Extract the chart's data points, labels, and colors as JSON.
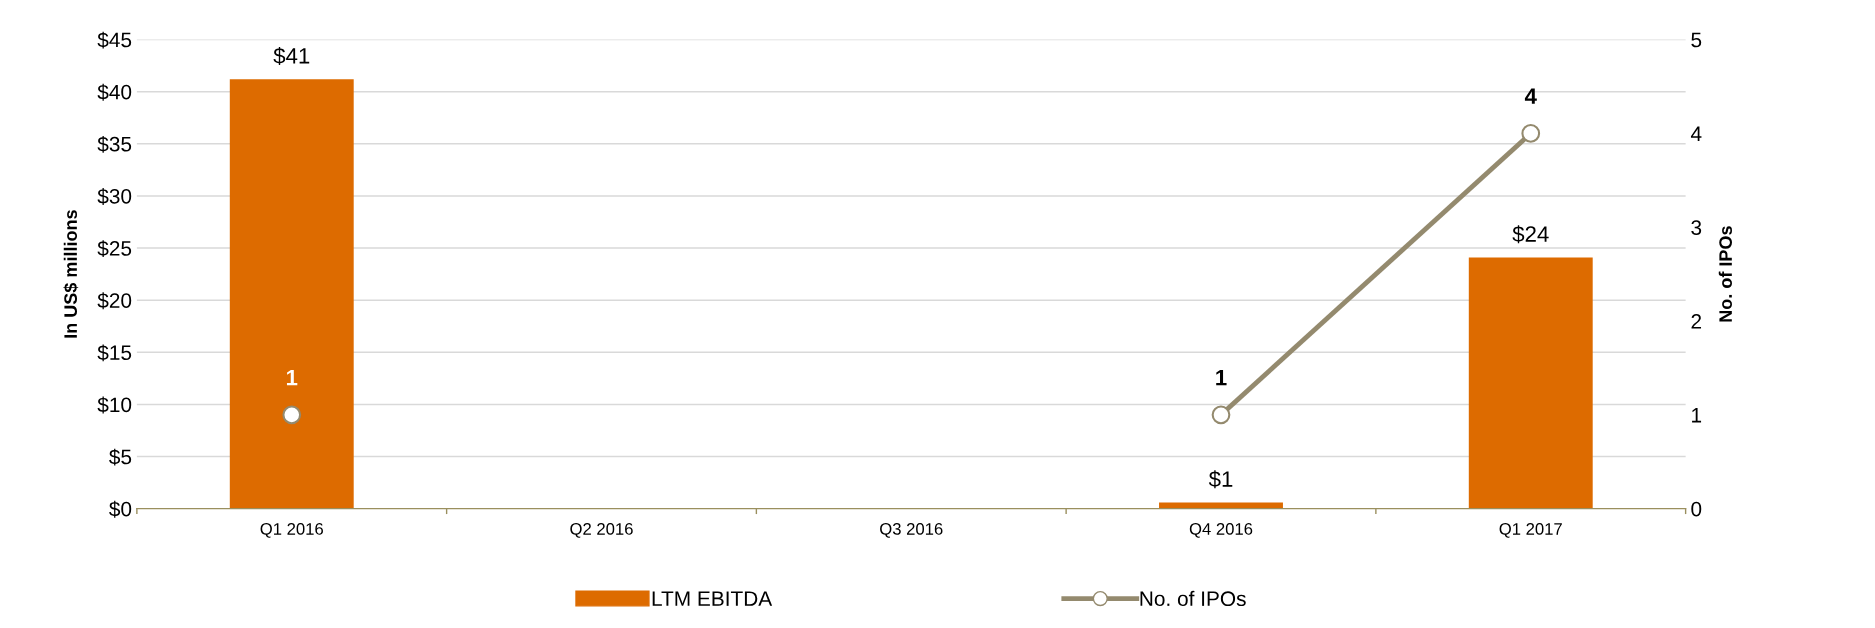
{
  "chart_data": {
    "type": "bar",
    "categories": [
      "Q1 2016",
      "Q2 2016",
      "Q3 2016",
      "Q4 2016",
      "Q1 2017"
    ],
    "series": [
      {
        "name": "LTM EBITDA",
        "color": "#dd6b00",
        "values": [
          41.2,
          null,
          null,
          0.6,
          24.1
        ],
        "value_labels": [
          "$41",
          null,
          null,
          "$1",
          "$24"
        ]
      },
      {
        "name": "No. of IPOs",
        "type": "line",
        "axis": "y2",
        "color": "#948a6e",
        "marker": "circle",
        "values": [
          1,
          null,
          null,
          1,
          4
        ],
        "value_labels": [
          "1",
          null,
          null,
          "1",
          "4"
        ]
      }
    ],
    "ylabel": "In US$ millions",
    "y2label": "No. of IPOs",
    "ylim": [
      0,
      45
    ],
    "yticks": [
      {
        "value": 0,
        "label": "$0"
      },
      {
        "value": 5,
        "label": "$5"
      },
      {
        "value": 10,
        "label": "$10"
      },
      {
        "value": 15,
        "label": "$15"
      },
      {
        "value": 20,
        "label": "$20"
      },
      {
        "value": 25,
        "label": "$25"
      },
      {
        "value": 30,
        "label": "$30"
      },
      {
        "value": 35,
        "label": "$35"
      },
      {
        "value": 40,
        "label": "$40"
      },
      {
        "value": 45,
        "label": "$45"
      }
    ],
    "y2lim": [
      0,
      5
    ],
    "y2ticks": [
      0,
      1,
      2,
      3,
      4,
      5
    ],
    "grid": "y",
    "legend": "bottom"
  }
}
